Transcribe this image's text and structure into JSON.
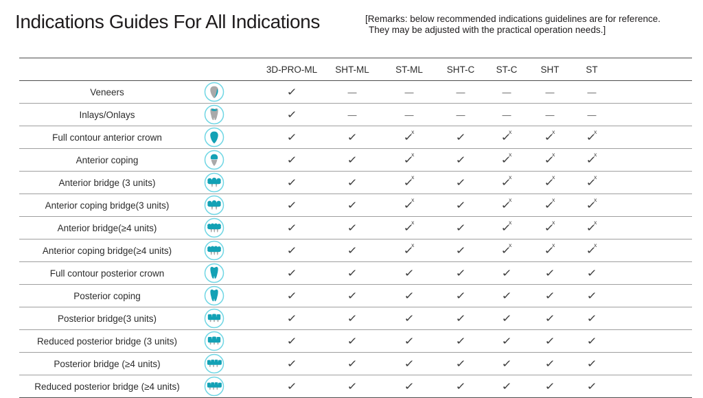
{
  "page": {
    "title": "Indications Guides For All Indications",
    "remarks_line1": "[Remarks: below recommended indications guidelines are for reference.",
    "remarks_line2": "They may be adjusted with the practical operation needs.]"
  },
  "glyphs": {
    "check": "✓",
    "dash": "—",
    "x_suffix": "x"
  },
  "colors": {
    "ring": "#6fd6e4",
    "tooth_teal": "#13a1b5",
    "tooth_gray": "#a9a9a9",
    "strong_line": "#4c4c4c",
    "light_line": "#9e9e9e"
  },
  "table": {
    "columns": [
      "3D-PRO-ML",
      "SHT-ML",
      "ST-ML",
      "SHT-C",
      "ST-C",
      "SHT",
      "ST"
    ],
    "rows": [
      {
        "label": "Veneers",
        "icon": "veneer-tooth",
        "marks": [
          "check",
          "dash",
          "dash",
          "dash",
          "dash",
          "dash",
          "dash"
        ]
      },
      {
        "label": "Inlays/Onlays",
        "icon": "inlay-onlay-tooth",
        "marks": [
          "check",
          "dash",
          "dash",
          "dash",
          "dash",
          "dash",
          "dash"
        ]
      },
      {
        "label": "Full contour anterior crown",
        "icon": "anterior-crown-tooth",
        "marks": [
          "check",
          "check",
          "check_x",
          "check",
          "check_x",
          "check_x",
          "check_x"
        ]
      },
      {
        "label": "Anterior coping",
        "icon": "anterior-coping-tooth",
        "marks": [
          "check",
          "check",
          "check_x",
          "check",
          "check_x",
          "check_x",
          "check_x"
        ]
      },
      {
        "label": "Anterior bridge (3 units)",
        "icon": "anterior-bridge-3",
        "marks": [
          "check",
          "check",
          "check_x",
          "check",
          "check_x",
          "check_x",
          "check_x"
        ]
      },
      {
        "label": "Anterior coping bridge(3 units)",
        "icon": "anterior-coping-bridge-3",
        "marks": [
          "check",
          "check",
          "check_x",
          "check",
          "check_x",
          "check_x",
          "check_x"
        ]
      },
      {
        "label": "Anterior bridge(≥4 units)",
        "icon": "anterior-bridge-4",
        "marks": [
          "check",
          "check",
          "check_x",
          "check",
          "check_x",
          "check_x",
          "check_x"
        ]
      },
      {
        "label": "Anterior coping bridge(≥4 units)",
        "icon": "anterior-coping-bridge-4",
        "marks": [
          "check",
          "check",
          "check_x",
          "check",
          "check_x",
          "check_x",
          "check_x"
        ]
      },
      {
        "label": "Full contour posterior crown",
        "icon": "posterior-crown-tooth",
        "marks": [
          "check",
          "check",
          "check",
          "check",
          "check",
          "check",
          "check"
        ]
      },
      {
        "label": "Posterior coping",
        "icon": "posterior-coping-tooth",
        "marks": [
          "check",
          "check",
          "check",
          "check",
          "check",
          "check",
          "check"
        ]
      },
      {
        "label": "Posterior bridge(3 units)",
        "icon": "posterior-bridge-3",
        "marks": [
          "check",
          "check",
          "check",
          "check",
          "check",
          "check",
          "check"
        ]
      },
      {
        "label": "Reduced posterior bridge (3 units)",
        "icon": "reduced-posterior-bridge-3",
        "marks": [
          "check",
          "check",
          "check",
          "check",
          "check",
          "check",
          "check"
        ]
      },
      {
        "label": "Posterior bridge (≥4 units)",
        "icon": "posterior-bridge-4",
        "marks": [
          "check",
          "check",
          "check",
          "check",
          "check",
          "check",
          "check"
        ]
      },
      {
        "label": "Reduced posterior bridge (≥4 units)",
        "icon": "reduced-posterior-bridge-4",
        "marks": [
          "check",
          "check",
          "check",
          "check",
          "check",
          "check",
          "check"
        ]
      }
    ]
  }
}
